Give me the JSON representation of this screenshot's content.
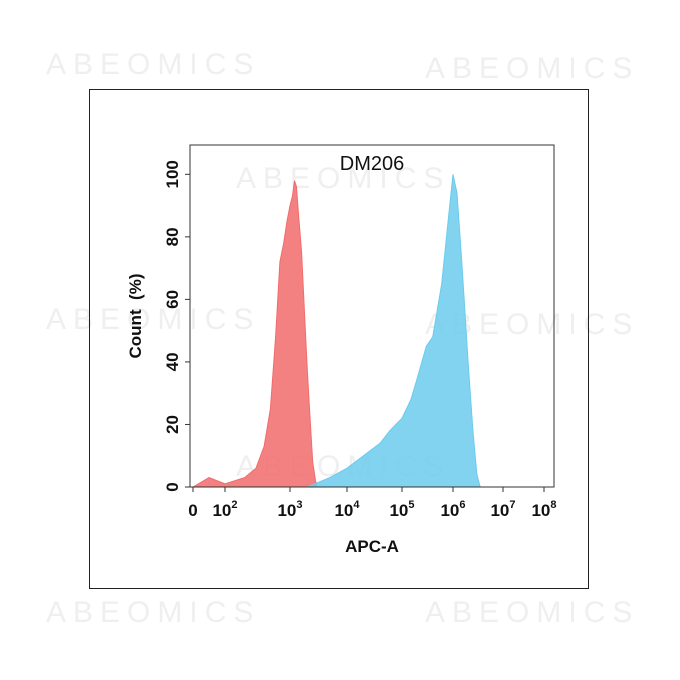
{
  "watermark": "ABEOMICS",
  "chart_data": {
    "type": "area",
    "title": "DM206",
    "xlabel": "APC-A",
    "ylabel": "Count  (%)",
    "xscale": "biexponential-log",
    "xlim": [
      0,
      100000000
    ],
    "ylim": [
      0,
      105
    ],
    "grid": false,
    "x_ticks": [
      {
        "base": "0",
        "exp": ""
      },
      {
        "base": "10",
        "exp": "2"
      },
      {
        "base": "10",
        "exp": "3"
      },
      {
        "base": "10",
        "exp": "4"
      },
      {
        "base": "10",
        "exp": "5"
      },
      {
        "base": "10",
        "exp": "6"
      },
      {
        "base": "10",
        "exp": "7"
      },
      {
        "base": "10",
        "exp": "8"
      }
    ],
    "y_ticks": [
      "0",
      "20",
      "40",
      "60",
      "80",
      "100"
    ],
    "series": [
      {
        "color": "#f26b6b",
        "x": [
          0,
          50,
          100,
          200,
          300,
          400,
          500,
          600,
          700,
          800,
          900,
          1000,
          1100,
          1200,
          1300,
          1400,
          1600,
          1800,
          2000,
          2200,
          2500,
          2800,
          3000
        ],
        "y": [
          0,
          3,
          1,
          3,
          6,
          13,
          25,
          48,
          72,
          78,
          85,
          90,
          93,
          98,
          96,
          88,
          75,
          55,
          38,
          25,
          8,
          2,
          0
        ]
      },
      {
        "color": "#6ccbec",
        "x": [
          2000,
          5000,
          10000,
          20000,
          40000,
          60000,
          100000,
          150000,
          200000,
          300000,
          400000,
          600000,
          800000,
          1000000,
          1200000,
          1500000,
          2000000,
          2500000,
          3000000,
          3500000
        ],
        "y": [
          0,
          3,
          6,
          10,
          14,
          18,
          22,
          28,
          35,
          45,
          48,
          65,
          85,
          100,
          94,
          72,
          40,
          18,
          4,
          0
        ]
      }
    ]
  }
}
